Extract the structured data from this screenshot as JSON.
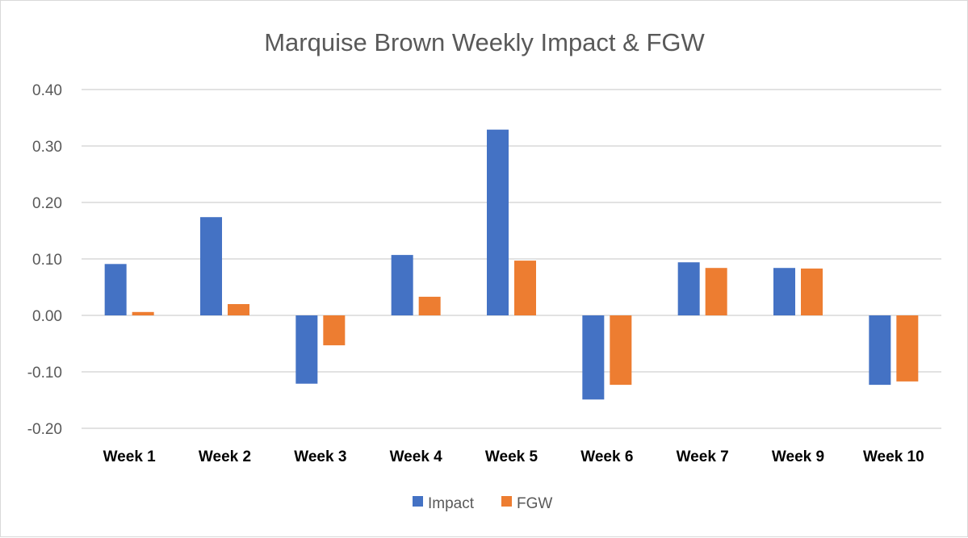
{
  "chart_data": {
    "type": "bar",
    "title": "Marquise Brown Weekly Impact & FGW",
    "categories": [
      "Week 1",
      "Week 2",
      "Week 3",
      "Week 4",
      "Week 5",
      "Week 6",
      "Week 7",
      "Week 9",
      "Week 10"
    ],
    "series": [
      {
        "name": "Impact",
        "color": "#4472C4",
        "values": [
          0.091,
          0.174,
          -0.121,
          0.107,
          0.329,
          -0.149,
          0.094,
          0.084,
          -0.123
        ]
      },
      {
        "name": "FGW",
        "color": "#ED7D31",
        "values": [
          0.006,
          0.02,
          -0.053,
          0.033,
          0.097,
          -0.123,
          0.084,
          0.083,
          -0.117
        ]
      }
    ],
    "ylim": [
      -0.2,
      0.4
    ],
    "yticks": [
      "0.40",
      "0.30",
      "0.20",
      "0.10",
      "0.00",
      "-0.10",
      "-0.20"
    ],
    "ytick_values": [
      0.4,
      0.3,
      0.2,
      0.1,
      0,
      -0.1,
      -0.2
    ],
    "grid": true,
    "legend_position": "bottom",
    "xlabel": "",
    "ylabel": ""
  }
}
